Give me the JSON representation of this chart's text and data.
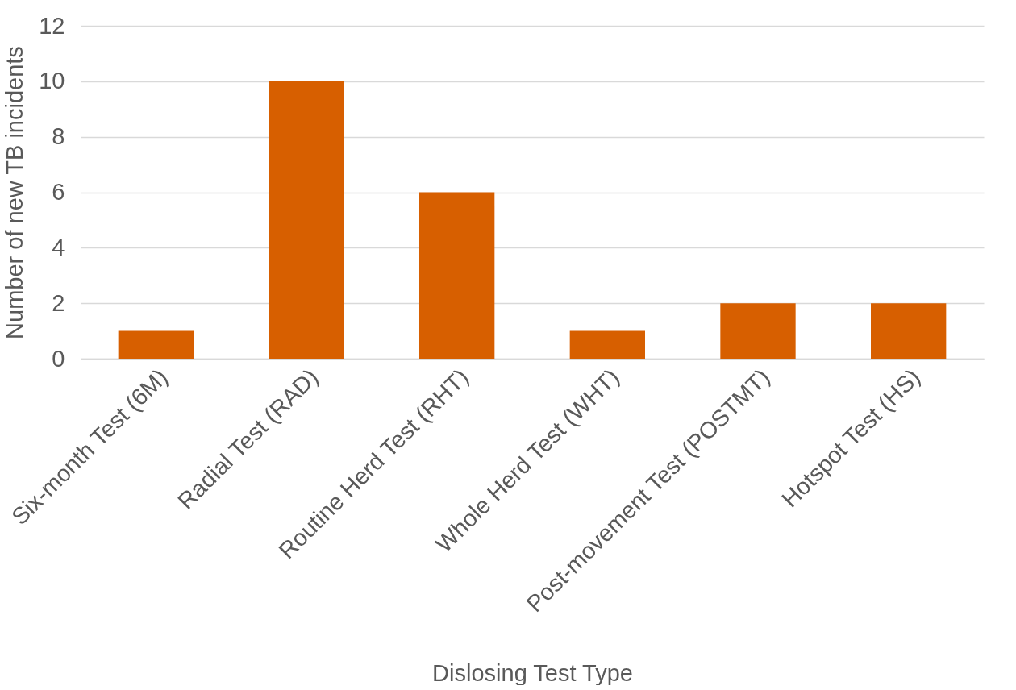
{
  "chart_data": {
    "type": "bar",
    "xlabel": "Dislosing Test Type",
    "ylabel": "Number of new TB incidents",
    "categories": [
      "Six-month Test (6M)",
      "Radial Test (RAD)",
      "Routine Herd Test (RHT)",
      "Whole Herd Test (WHT)",
      "Post-movement Test (POSTMT)",
      "Hotspot Test (HS)"
    ],
    "values": [
      1,
      10,
      6,
      1,
      2,
      2
    ],
    "color": "#d75f00",
    "ylim": [
      0,
      12
    ],
    "yticks": [
      0,
      2,
      4,
      6,
      8,
      10,
      12
    ],
    "grid": "y"
  }
}
